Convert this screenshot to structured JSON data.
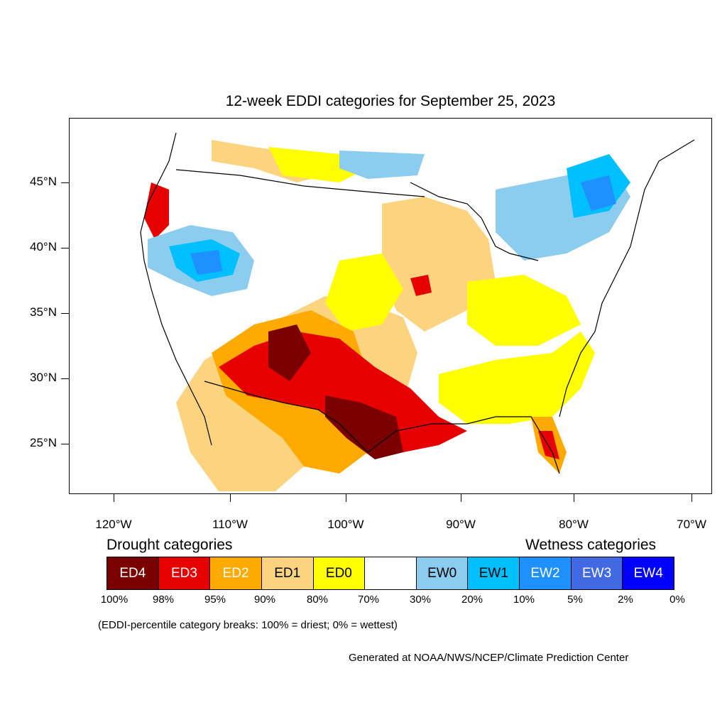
{
  "title": "12-week EDDI categories for September 25, 2023",
  "lat_labels": [
    "45°N",
    "40°N",
    "35°N",
    "30°N",
    "25°N"
  ],
  "lon_labels": [
    "120°W",
    "110°W",
    "100°W",
    "90°W",
    "80°W",
    "70°W"
  ],
  "legend": {
    "drought_heading": "Drought categories",
    "wetness_heading": "Wetness categories",
    "categories": [
      {
        "label": "ED4",
        "color": "#7a0000",
        "text_color": "#ffffff"
      },
      {
        "label": "ED3",
        "color": "#e60000",
        "text_color": "#ffffff"
      },
      {
        "label": "ED2",
        "color": "#ffaa00",
        "text_color": "#ffffff"
      },
      {
        "label": "ED1",
        "color": "#fcd37f",
        "text_color": "#000000"
      },
      {
        "label": "ED0",
        "color": "#ffff00",
        "text_color": "#000000"
      },
      {
        "label": "",
        "color": "#ffffff",
        "text_color": "#000000"
      },
      {
        "label": "EW0",
        "color": "#8ccdef",
        "text_color": "#000000"
      },
      {
        "label": "EW1",
        "color": "#00bfff",
        "text_color": "#000000"
      },
      {
        "label": "EW2",
        "color": "#1e90ff",
        "text_color": "#ffffff"
      },
      {
        "label": "EW3",
        "color": "#4169e1",
        "text_color": "#ffffff"
      },
      {
        "label": "EW4",
        "color": "#0000ff",
        "text_color": "#ffffff"
      }
    ],
    "breaks": [
      "100%",
      "98%",
      "95%",
      "90%",
      "80%",
      "70%",
      "30%",
      "20%",
      "10%",
      "5%",
      "2%",
      "0%"
    ],
    "note": "(EDDI-percentile category breaks: 100% = driest; 0% = wettest)"
  },
  "credit": "Generated at NOAA/NWS/NCEP/Climate Prediction Center"
}
